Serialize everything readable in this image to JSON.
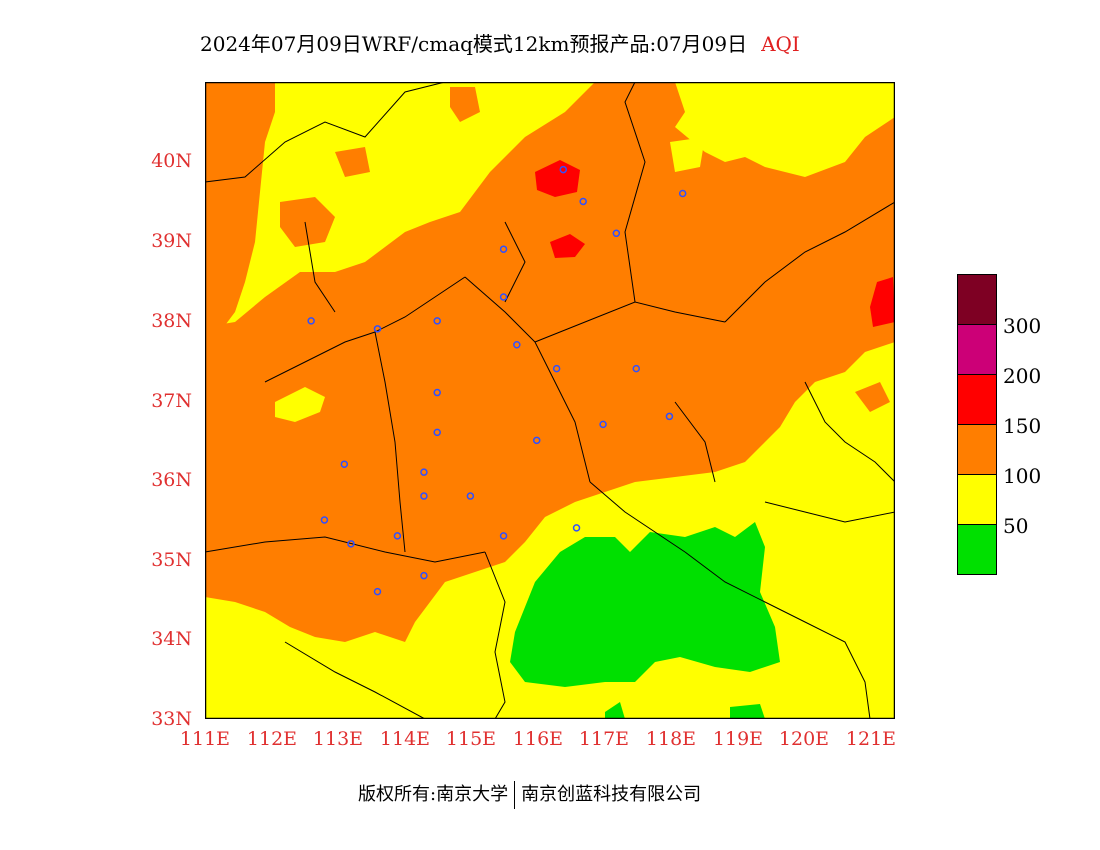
{
  "title": "2024年07月09日WRF/cmaq模式12km预报产品:07月09日",
  "title_variable": "AQI",
  "lat_labels": [
    "40N",
    "39N",
    "38N",
    "37N",
    "36N",
    "35N",
    "34N",
    "33N"
  ],
  "lon_labels": [
    "111E",
    "112E",
    "113E",
    "114E",
    "115E",
    "116E",
    "117E",
    "118E",
    "119E",
    "120E",
    "121E"
  ],
  "legend": {
    "colors": [
      "#00e000",
      "#ffff00",
      "#ff7e00",
      "#ff0000",
      "#cc0077",
      "#7e0023"
    ],
    "labels": [
      "50",
      "100",
      "150",
      "200",
      "300"
    ]
  },
  "map_colors": {
    "good": "#00e000",
    "moderate": "#ffff00",
    "usg": "#ff7e00",
    "unhealthy": "#ff0000",
    "boundary": "#000000",
    "city_marker": "#3050ff"
  },
  "extent": {
    "lon": [
      111,
      121.4
    ],
    "lat": [
      33,
      41
    ]
  },
  "city_markers": [
    [
      116.4,
      39.9
    ],
    [
      117.2,
      39.1
    ],
    [
      118.2,
      39.6
    ],
    [
      116.7,
      39.5
    ],
    [
      115.5,
      38.9
    ],
    [
      115.5,
      38.3
    ],
    [
      114.5,
      38.0
    ],
    [
      113.6,
      37.9
    ],
    [
      112.6,
      38.0
    ],
    [
      115.7,
      37.7
    ],
    [
      116.3,
      37.4
    ],
    [
      117.5,
      37.4
    ],
    [
      114.5,
      37.1
    ],
    [
      114.5,
      36.6
    ],
    [
      116.0,
      36.5
    ],
    [
      117.0,
      36.7
    ],
    [
      118.0,
      36.8
    ],
    [
      113.1,
      36.2
    ],
    [
      114.3,
      36.1
    ],
    [
      114.3,
      35.8
    ],
    [
      115.0,
      35.8
    ],
    [
      112.8,
      35.5
    ],
    [
      113.2,
      35.2
    ],
    [
      113.9,
      35.3
    ],
    [
      115.5,
      35.3
    ],
    [
      116.6,
      35.4
    ],
    [
      114.3,
      34.8
    ],
    [
      113.6,
      34.6
    ]
  ],
  "footer": {
    "left": "版权所有:南京大学",
    "right": "南京创蓝科技有限公司"
  }
}
